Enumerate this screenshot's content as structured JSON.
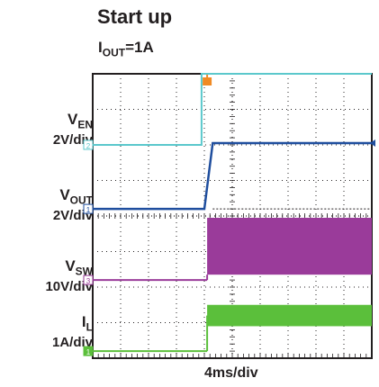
{
  "chart_data": {
    "type": "line",
    "title": "Start up",
    "subtitle_prefix": "I",
    "subtitle_sub": "OUT",
    "subtitle_suffix": "=1A",
    "x_scale": "4ms/div",
    "x_divisions": 10,
    "y_divisions": 8,
    "grid": true,
    "trigger_position_div": 4.1,
    "channels": [
      {
        "symbol": "V",
        "sub": "EN",
        "scale": "2V/div",
        "marker": "2",
        "color": "#5bc8cc",
        "baseline_div": 6.0,
        "kind": "step",
        "step_at_div": 3.9,
        "high_delta_div": 2.0,
        "width_div": 0.0
      },
      {
        "symbol": "V",
        "sub": "OUT",
        "scale": "2V/div",
        "marker": "1",
        "color": "#1f4e9e",
        "baseline_div": 4.2,
        "kind": "ramp",
        "step_at_div": 4.0,
        "ramp_end_div": 4.3,
        "high_delta_div": 1.85,
        "width_div": 0.0
      },
      {
        "symbol": "V",
        "sub": "SW",
        "scale": "10V/div",
        "marker": "3",
        "color": "#9a3b9a",
        "baseline_div": 2.2,
        "kind": "band",
        "step_at_div": 4.1,
        "high_delta_div": 0.15,
        "width_div": 1.6
      },
      {
        "symbol": "I",
        "sub": "L",
        "scale": "1A/div",
        "marker": "1",
        "color": "#5bbf3b",
        "baseline_div": 0.2,
        "kind": "band",
        "step_at_div": 4.1,
        "high_delta_div": 1.0,
        "width_div": 0.6
      }
    ]
  }
}
